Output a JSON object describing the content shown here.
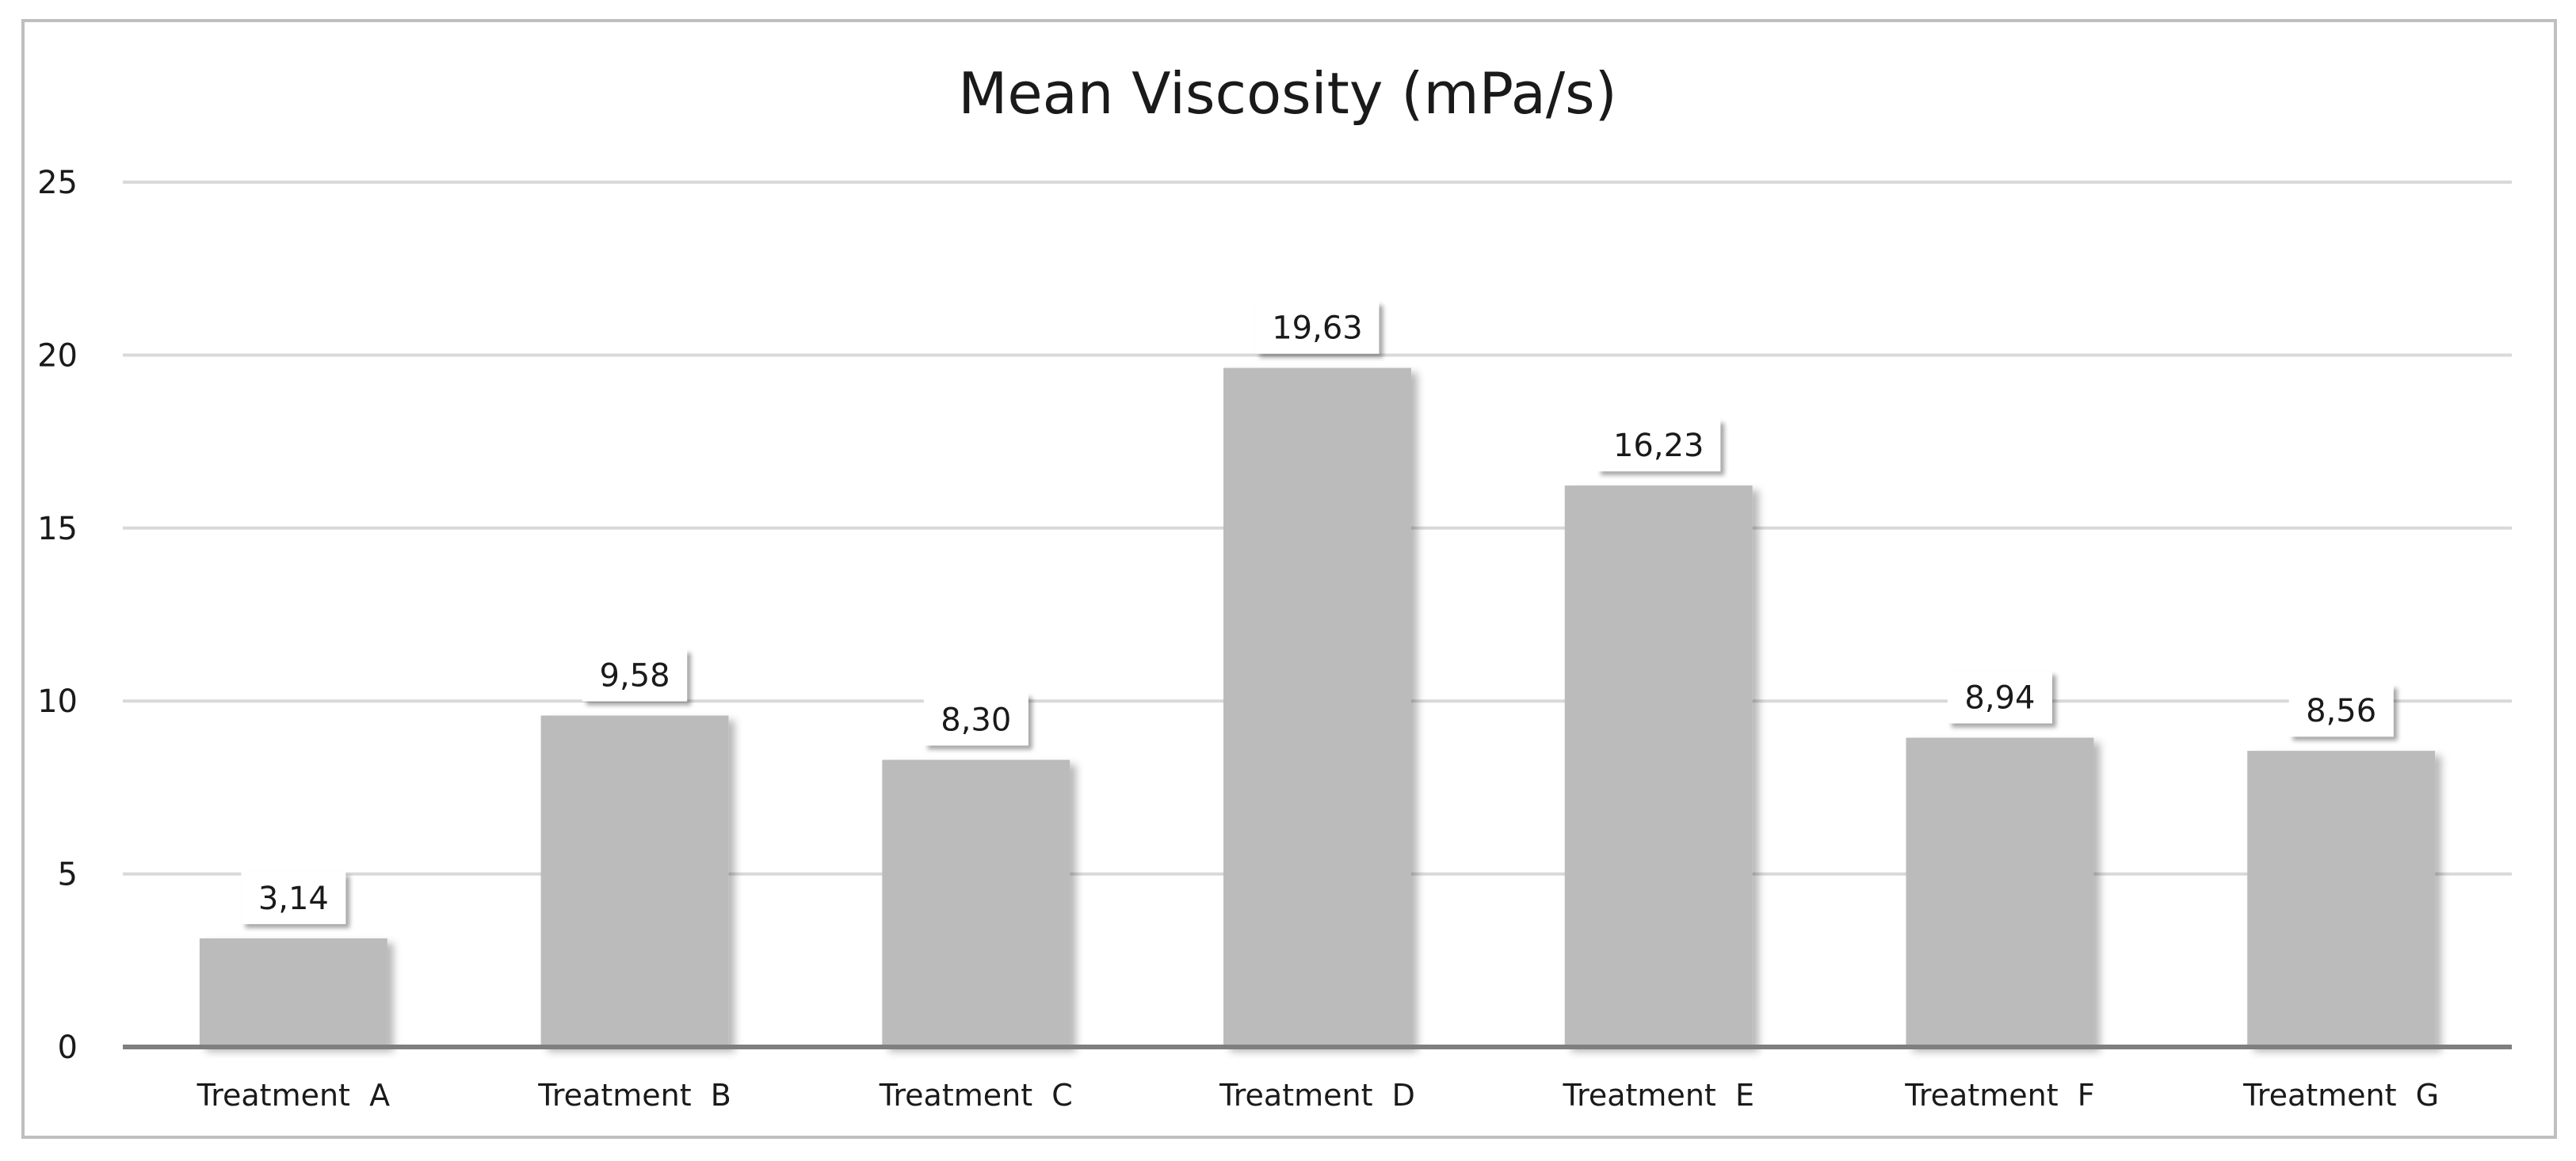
{
  "chart_data": {
    "type": "bar",
    "title": "Mean Viscosity (mPa/s)",
    "categories": [
      "Treatment  A",
      "Treatment  B",
      "Treatment  C",
      "Treatment  D",
      "Treatment  E",
      "Treatment  F",
      "Treatment  G"
    ],
    "values": [
      3.14,
      9.58,
      8.3,
      19.63,
      16.23,
      8.94,
      8.56
    ],
    "data_labels": [
      "3,14",
      "9,58",
      "8,30",
      "19,63",
      "16,23",
      "8,94",
      "8,56"
    ],
    "yticks": [
      "0",
      "5",
      "10",
      "15",
      "20",
      "25"
    ],
    "ylim": [
      0,
      25
    ],
    "xlabel": "",
    "ylabel": "",
    "grid": true,
    "legend": "none",
    "colors": {
      "bar": "#bbbbbb",
      "grid": "#d9d9d9",
      "axis": "#7f7f7f",
      "frame": "#bfbfbf"
    }
  }
}
